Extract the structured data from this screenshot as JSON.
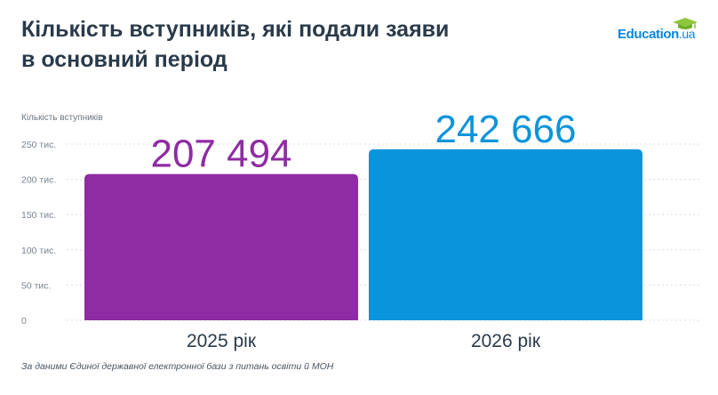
{
  "header": {
    "title_line1": "Кількість вступників, які подали заяви",
    "title_line2": "в основний період"
  },
  "logo": {
    "text": "Education",
    "suffix": ".ua",
    "icon": "graduation-cap-icon"
  },
  "source": "За даними Єдиної державної електронної бази з питань освіти й МОН",
  "colors": {
    "bar_2025": "#8f2ba3",
    "bar_2026": "#0a94dc",
    "grid": "#d9dde2",
    "title": "#2a3a4a"
  },
  "chart_data": {
    "type": "bar",
    "ylabel": "Кількість вступників",
    "ylim": [
      0,
      250000
    ],
    "yticks": [
      0,
      50000,
      100000,
      150000,
      200000,
      250000
    ],
    "ytick_labels": [
      "0",
      "50 тис.",
      "100 тис.",
      "150 тис.",
      "200 тис.",
      "250 тис."
    ],
    "categories": [
      "2025 рік",
      "2026 рік"
    ],
    "values": [
      207494,
      242666
    ],
    "value_labels": [
      "207 494",
      "242 666"
    ],
    "grid": true
  }
}
